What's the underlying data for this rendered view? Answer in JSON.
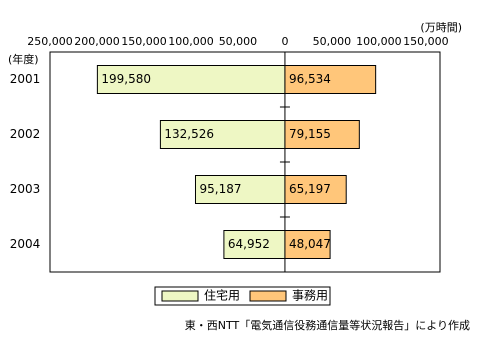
{
  "chart_data": {
    "type": "diverging-bar",
    "y_axis_title": "(年度)",
    "unit_label": "(万時間)",
    "source": "東・西NTT「電気通信役務通信量等状況報告」により作成",
    "categories": [
      "2001",
      "2002",
      "2003",
      "2004"
    ],
    "series": [
      {
        "name": "住宅用",
        "color": "#eef7c4",
        "direction": "left",
        "values": [
          199580,
          132526,
          95187,
          64952
        ],
        "value_labels": [
          "199,580",
          "132,526",
          "95,187",
          "64,952"
        ]
      },
      {
        "name": "事務用",
        "color": "#ffc67a",
        "direction": "right",
        "values": [
          96534,
          79155,
          65197,
          48047
        ],
        "value_labels": [
          "96,534",
          "79,155",
          "65,197",
          "48,047"
        ]
      }
    ],
    "xlim": [
      -250000,
      165000
    ],
    "xticks": [
      {
        "value": -250000,
        "label": "250,000"
      },
      {
        "value": -200000,
        "label": "200,000"
      },
      {
        "value": -150000,
        "label": "150,000"
      },
      {
        "value": -100000,
        "label": "100,000"
      },
      {
        "value": -50000,
        "label": "50,000"
      },
      0,
      {
        "value": 50000,
        "label": "50,000"
      },
      {
        "value": 100000,
        "label": "100,000"
      },
      {
        "value": 150000,
        "label": "150,000"
      }
    ],
    "legend": "bottom"
  }
}
